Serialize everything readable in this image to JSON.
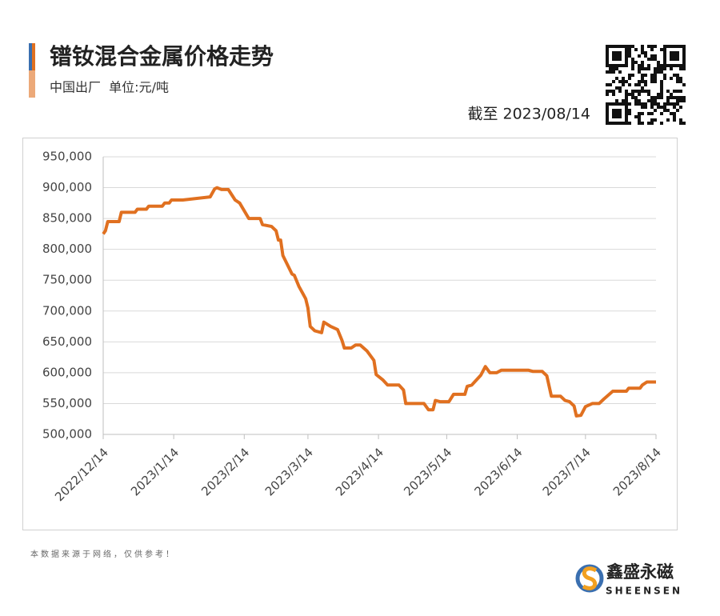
{
  "chart_data": {
    "type": "line",
    "title": "镨钕混合金属价格走势",
    "subtitle": "中国出厂  单位:元/吨",
    "date_note": "截至 2023/08/14",
    "source_note": "本数据来源于网络，仅供参考！",
    "brand": "鑫盛永磁",
    "brand_en": "SHEENSEN",
    "color": "#e07020",
    "grid": true,
    "x": [
      "2022/12/14",
      "2022/12/15",
      "2022/12/16",
      "2022/12/21",
      "2022/12/22",
      "2022/12/28",
      "2022/12/29",
      "2023/1/2",
      "2023/1/3",
      "2023/1/9",
      "2023/1/10",
      "2023/1/12",
      "2023/1/13",
      "2023/1/18",
      "2023/1/30",
      "2023/2/1",
      "2023/2/2",
      "2023/2/4",
      "2023/2/7",
      "2023/2/10",
      "2023/2/12",
      "2023/2/16",
      "2023/2/21",
      "2023/2/22",
      "2023/2/26",
      "2023/2/28",
      "2023/3/1",
      "2023/3/2",
      "2023/3/3",
      "2023/3/7",
      "2023/3/8",
      "2023/3/10",
      "2023/3/13",
      "2023/3/14",
      "2023/3/15",
      "2023/3/17",
      "2023/3/20",
      "2023/3/21",
      "2023/3/24",
      "2023/3/27",
      "2023/3/29",
      "2023/3/30",
      "2023/4/2",
      "2023/4/4",
      "2023/4/6",
      "2023/4/9",
      "2023/4/12",
      "2023/4/13",
      "2023/4/16",
      "2023/4/18",
      "2023/4/23",
      "2023/4/25",
      "2023/4/26",
      "2023/5/4",
      "2023/5/6",
      "2023/5/8",
      "2023/5/9",
      "2023/5/11",
      "2023/5/15",
      "2023/5/17",
      "2023/5/22",
      "2023/5/23",
      "2023/5/25",
      "2023/5/29",
      "2023/5/31",
      "2023/6/2",
      "2023/6/5",
      "2023/6/7",
      "2023/6/19",
      "2023/6/21",
      "2023/6/25",
      "2023/6/27",
      "2023/6/29",
      "2023/7/3",
      "2023/7/5",
      "2023/7/7",
      "2023/7/9",
      "2023/7/10",
      "2023/7/12",
      "2023/7/14",
      "2023/7/17",
      "2023/7/20",
      "2023/7/22",
      "2023/7/26",
      "2023/8/1",
      "2023/8/2",
      "2023/8/7",
      "2023/8/8",
      "2023/8/10",
      "2023/8/14"
    ],
    "values": [
      825000,
      830000,
      845000,
      845000,
      860000,
      860000,
      865000,
      865000,
      870000,
      870000,
      875000,
      875000,
      880000,
      880000,
      885000,
      898000,
      900000,
      897000,
      897000,
      880000,
      875000,
      850000,
      850000,
      840000,
      837000,
      830000,
      815000,
      815000,
      790000,
      760000,
      758000,
      740000,
      720000,
      705000,
      675000,
      668000,
      665000,
      682000,
      675000,
      670000,
      652000,
      640000,
      640000,
      645000,
      645000,
      635000,
      620000,
      597000,
      588000,
      580000,
      580000,
      572000,
      550000,
      550000,
      540000,
      540000,
      555000,
      553000,
      553000,
      565000,
      565000,
      578000,
      580000,
      596000,
      610000,
      600000,
      600000,
      604000,
      604000,
      602000,
      602000,
      595000,
      562000,
      562000,
      555000,
      553000,
      546000,
      530000,
      531000,
      545000,
      550000,
      550000,
      557000,
      570000,
      570000,
      575000,
      575000,
      580000,
      585000,
      585000
    ],
    "xlim": [
      "2022/12/14",
      "2023/8/14"
    ],
    "xticks": [
      "2022/12/14",
      "2023/1/14",
      "2023/2/14",
      "2023/3/14",
      "2023/4/14",
      "2023/5/14",
      "2023/6/14",
      "2023/7/14",
      "2023/8/14"
    ],
    "ylim": [
      500000,
      950000
    ],
    "yticks": [
      {
        "value": 500000,
        "label": "500,000"
      },
      {
        "value": 550000,
        "label": "550,000"
      },
      {
        "value": 600000,
        "label": "600,000"
      },
      {
        "value": 650000,
        "label": "650,000"
      },
      {
        "value": 700000,
        "label": "700,000"
      },
      {
        "value": 750000,
        "label": "750,000"
      },
      {
        "value": 800000,
        "label": "800,000"
      },
      {
        "value": 850000,
        "label": "850,000"
      },
      {
        "value": 900000,
        "label": "900,000"
      },
      {
        "value": 950000,
        "label": "950,000"
      }
    ]
  }
}
